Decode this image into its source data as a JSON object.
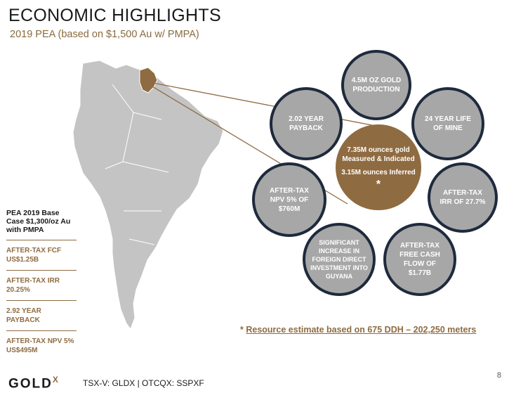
{
  "header": {
    "title": "ECONOMIC HIGHLIGHTS",
    "subtitle": "2019 PEA (based on $1,500 Au w/ PMPA)"
  },
  "center": {
    "line1": "7.35M ounces gold",
    "line2": "Measured & Indicated",
    "line3": "3.15M ounces Inferred",
    "marker": "*"
  },
  "circles": [
    {
      "name": "production",
      "text": "4.5M OZ GOLD PRODUCTION"
    },
    {
      "name": "mine-life",
      "text": "24 YEAR LIFE OF MINE"
    },
    {
      "name": "irr",
      "text": "AFTER-TAX IRR OF 27.7%"
    },
    {
      "name": "free-cash-flow",
      "text": "AFTER-TAX FREE CASH FLOW OF $1.77B"
    },
    {
      "name": "investment",
      "text": "SIGNIFICANT INCREASE IN FOREIGN DIRECT INVESTMENT INTO GUYANA"
    },
    {
      "name": "npv",
      "text": "AFTER-TAX NPV 5% OF $760M"
    },
    {
      "name": "payback",
      "text": "2.02 YEAR PAYBACK"
    }
  ],
  "sidebar": {
    "heading": "PEA 2019 Base Case $1,300/oz Au with PMPA",
    "items": [
      "AFTER-TAX FCF US$1.25B",
      "AFTER-TAX IRR 20.25%",
      "2.92 YEAR PAYBACK",
      "AFTER-TAX NPV 5% US$495M"
    ]
  },
  "footnote": {
    "marker": "*",
    "text": "Resource estimate based on 675 DDH – 202,250 meters"
  },
  "footer": {
    "logo_text": "GOLD",
    "logo_suffix": "X",
    "ticker": "TSX-V: GLDX | OTCQX: SSPXF",
    "page_number": "8"
  },
  "colors": {
    "accent": "#8f6b41",
    "circle_fill": "#a7a7a7",
    "circle_border": "#1e2a3c",
    "map": "#c4c4c4"
  }
}
